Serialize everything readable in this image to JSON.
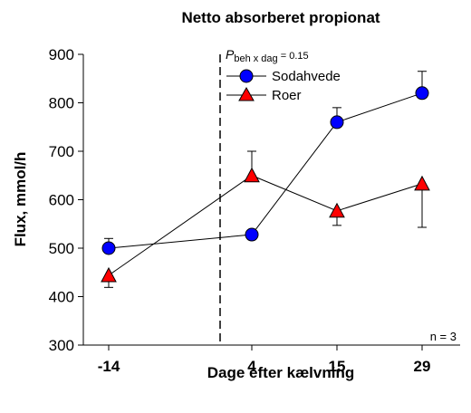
{
  "chart_data": {
    "type": "line",
    "title": "Netto absorberet propionat",
    "xlabel": "Dage efter kælvning",
    "ylabel": "Flux, mmol/h",
    "x_tick_labels": [
      "-14",
      "4",
      "15",
      "29"
    ],
    "ylim": [
      300,
      900
    ],
    "y_ticks": [
      "300",
      "400",
      "500",
      "600",
      "700",
      "800",
      "900"
    ],
    "calving_line_position": "between -14 and 4",
    "legend_position": "top-center",
    "grid": false,
    "series": [
      {
        "name": "Sodahvede",
        "marker": "circle",
        "color": "#0000ff",
        "x": [
          "-14",
          "4",
          "15",
          "29"
        ],
        "values": [
          500,
          528,
          760,
          820
        ],
        "error": [
          20,
          null,
          30,
          45
        ],
        "error_direction": [
          "up",
          "down",
          "up",
          "up"
        ]
      },
      {
        "name": "Roer",
        "marker": "triangle",
        "color": "#ff0000",
        "x": [
          "-14",
          "4",
          "15",
          "29"
        ],
        "values": [
          444,
          650,
          577,
          633
        ],
        "error": [
          25,
          50,
          30,
          90
        ],
        "error_direction": [
          "down",
          "up",
          "down",
          "down"
        ]
      }
    ],
    "annotations": {
      "p_value_main": "P",
      "p_value_sub": "beh x dag",
      "p_value_rest": " = 0.15",
      "n_label": "n = 3"
    }
  }
}
